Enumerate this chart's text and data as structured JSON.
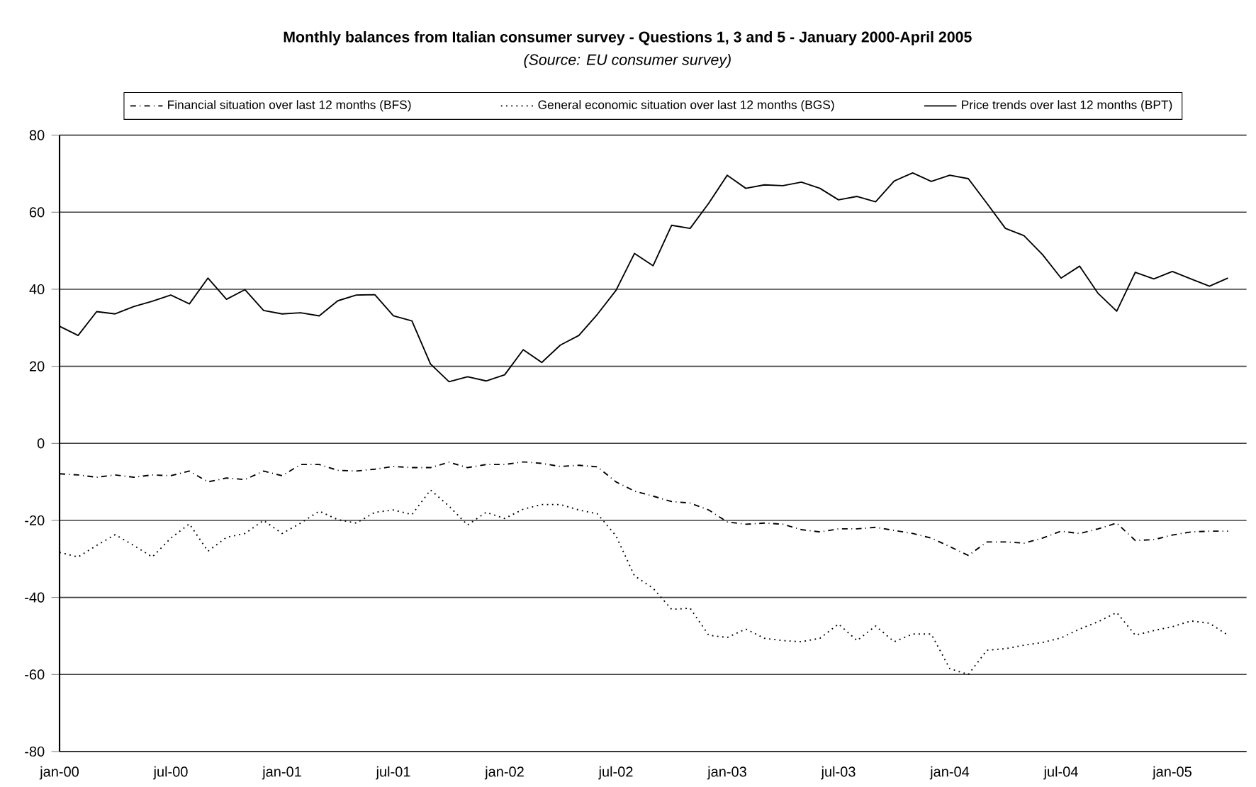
{
  "chart_data": {
    "type": "line",
    "title": "Monthly balances from Italian consumer survey - Questions 1, 3 and 5 - January 2000-April 2005",
    "subtitle": "(Source: EU consumer survey)",
    "categories": [
      "jan-00",
      null,
      null,
      null,
      null,
      null,
      "jul-00",
      null,
      null,
      null,
      null,
      null,
      "jan-01",
      null,
      null,
      null,
      null,
      null,
      "jul-01",
      null,
      null,
      null,
      null,
      null,
      "jan-02",
      null,
      null,
      null,
      null,
      null,
      "jul-02",
      null,
      null,
      null,
      null,
      null,
      "jan-03",
      null,
      null,
      null,
      null,
      null,
      "jul-03",
      null,
      null,
      null,
      null,
      null,
      "jan-04",
      null,
      null,
      null,
      null,
      null,
      "jul-04",
      null,
      null,
      null,
      null,
      null,
      "jan-05",
      null,
      null,
      null
    ],
    "ylim": [
      -80,
      80
    ],
    "yticks": [
      -80,
      -60,
      -40,
      -20,
      0,
      20,
      40,
      60,
      80
    ],
    "grid": "y",
    "legend": "top",
    "series": [
      {
        "name": "Financial situation over last 12 months (BFS)",
        "color": "#000000",
        "line_style": "dashdot",
        "values": [
          -7.9,
          -8.2,
          -8.8,
          -8.2,
          -8.8,
          -8.2,
          -8.4,
          -7.2,
          -10,
          -9.0,
          -9.4,
          -7.2,
          -8.4,
          -5.5,
          -5.5,
          -7.0,
          -7.2,
          -6.7,
          -6.0,
          -6.3,
          -6.3,
          -4.9,
          -6.3,
          -5.5,
          -5.5,
          -4.8,
          -5.2,
          -6.0,
          -5.7,
          -6.1,
          -10,
          -12.4,
          -13.7,
          -15.1,
          -15.5,
          -17.3,
          -20.4,
          -21,
          -20.7,
          -21,
          -22.4,
          -23,
          -22.2,
          -22.2,
          -21.8,
          -22.6,
          -23.4,
          -24.6,
          -26.8,
          -29.1,
          -25.6,
          -25.6,
          -25.9,
          -24.6,
          -22.8,
          -23.4,
          -22.2,
          -20.7,
          -25.2,
          -25,
          -23.8,
          -23,
          -22.8,
          -22.8
        ]
      },
      {
        "name": "General economic situation over last 12 months (BGS)",
        "color": "#000000",
        "line_style": "dotted",
        "values": [
          -28.3,
          -29.5,
          -26.5,
          -23.7,
          -26.5,
          -29.5,
          -24.6,
          -20.9,
          -28,
          -24.4,
          -23.4,
          -20,
          -23.4,
          -20.7,
          -17.6,
          -19.8,
          -20.7,
          -17.9,
          -17.3,
          -18.5,
          -12.1,
          -16.3,
          -21.2,
          -17.9,
          -19.5,
          -17.1,
          -15.9,
          -15.9,
          -17.3,
          -18.3,
          -24,
          -34.4,
          -37.6,
          -43.1,
          -42.8,
          -49.8,
          -50.4,
          -48.2,
          -50.6,
          -51.2,
          -51.5,
          -50.6,
          -46.9,
          -51.2,
          -47.4,
          -51.5,
          -49.5,
          -49.5,
          -58.5,
          -60,
          -53.7,
          -53.3,
          -52.4,
          -51.7,
          -50.5,
          -48.2,
          -46.3,
          -43.9,
          -49.8,
          -48.6,
          -47.6,
          -46.1,
          -46.7,
          -49.8
        ]
      },
      {
        "name": "Price trends over last 12 months (BPT)",
        "color": "#000000",
        "line_style": "solid",
        "values": [
          30.4,
          28,
          34.2,
          33.6,
          35.5,
          36.9,
          38.5,
          36.2,
          42.9,
          37.4,
          39.9,
          34.5,
          33.6,
          33.9,
          33.1,
          37.0,
          38.5,
          38.6,
          33.1,
          31.8,
          20.6,
          16.0,
          17.3,
          16.2,
          17.8,
          24.3,
          21.0,
          25.5,
          28.0,
          33.5,
          39.7,
          49.3,
          46.1,
          56.6,
          55.8,
          62.3,
          69.6,
          66.2,
          67.1,
          66.9,
          67.8,
          66.2,
          63.2,
          64.1,
          62.7,
          68.1,
          70.2,
          68.0,
          69.6,
          68.7,
          62.3,
          55.8,
          53.9,
          49.0,
          42.9,
          46.0,
          38.9,
          34.3,
          44.4,
          42.7,
          44.6,
          42.7,
          40.8,
          42.9
        ]
      }
    ]
  }
}
